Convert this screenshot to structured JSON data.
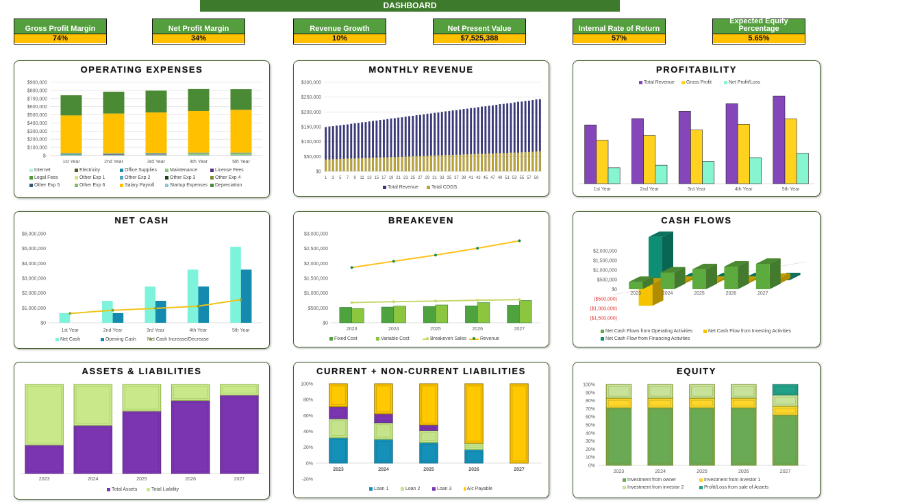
{
  "header": {
    "title": "DASHBOARD"
  },
  "kpis": [
    {
      "label": "Gross Profit Margin",
      "value": "74%"
    },
    {
      "label": "Net Profit Margin",
      "value": "34%"
    },
    {
      "label": "Revenue Growth",
      "value": "10%"
    },
    {
      "label": "Net Present Value",
      "value": "$7,525,388"
    },
    {
      "label": "Internal Rate of Return",
      "value": "57%"
    },
    {
      "label": "Expected Equity Percentage",
      "value": "5.65%"
    }
  ],
  "colors": {
    "title_bar": "#3E7A2C",
    "kpi_header": "#559E3E",
    "kpi_value": "#FFC000"
  },
  "chart_data": [
    {
      "id": "opex",
      "type": "bar",
      "stacked": true,
      "grid": true,
      "title": "OPERATING EXPENSES",
      "categories": [
        "1st Year",
        "2nd Year",
        "3rd Year",
        "4th Year",
        "5th Year"
      ],
      "ylim": [
        0,
        900000
      ],
      "yticks": [
        "$-",
        "$100,000",
        "$200,000",
        "$300,000",
        "$400,000",
        "$500,000",
        "$600,000",
        "$700,000",
        "$800,000",
        "$900,000"
      ],
      "legend": "bottom",
      "series": [
        {
          "name": "Internet",
          "color": "#B7F0E0",
          "values": [
            3000,
            3000,
            3000,
            3000,
            3000
          ]
        },
        {
          "name": "Electricity",
          "color": "#4E5A1E",
          "values": [
            3000,
            3000,
            3000,
            3000,
            3000
          ]
        },
        {
          "name": "Office Supplies",
          "color": "#1F8CA8",
          "values": [
            8000,
            3000,
            3000,
            3000,
            3000
          ]
        },
        {
          "name": "Maintenance",
          "color": "#8CC97A",
          "values": [
            3000,
            3000,
            5000,
            12000,
            12000
          ]
        },
        {
          "name": "License Fees",
          "color": "#5C2D83",
          "values": [
            2000,
            5000,
            6000,
            2000,
            2000
          ]
        },
        {
          "name": "Legal Fees",
          "color": "#4C9A3C",
          "values": [
            2000,
            2000,
            2000,
            2000,
            2000
          ]
        },
        {
          "name": "Other Exp 1",
          "color": "#D3E48A",
          "values": [
            2000,
            2000,
            2000,
            2000,
            2000
          ]
        },
        {
          "name": "Other Exp 2",
          "color": "#4FA6B8",
          "values": [
            2000,
            2000,
            2000,
            2000,
            2000
          ]
        },
        {
          "name": "Other Exp 3",
          "color": "#24401A",
          "values": [
            2000,
            2000,
            2000,
            2000,
            2000
          ]
        },
        {
          "name": "Other Exp 4",
          "color": "#7C8A36",
          "values": [
            2000,
            2000,
            2000,
            2000,
            2000
          ]
        },
        {
          "name": "Other Exp 5",
          "color": "#2B5E6E",
          "values": [
            2000,
            2000,
            2000,
            2000,
            2000
          ]
        },
        {
          "name": "Other Exp 6",
          "color": "#7DBE6E",
          "values": [
            2000,
            2000,
            2000,
            2000,
            2000
          ]
        },
        {
          "name": "Salary Payroll",
          "color": "#FFC000",
          "values": [
            460000,
            485000,
            495000,
            510000,
            525000
          ]
        },
        {
          "name": "Startup Expenses",
          "color": "#8BC7D0",
          "values": [
            0,
            0,
            0,
            0,
            0
          ]
        },
        {
          "name": "Depreciation",
          "color": "#4A8A34",
          "values": [
            247000,
            268000,
            268000,
            270000,
            253000
          ]
        }
      ]
    },
    {
      "id": "monthly",
      "type": "bar",
      "stacked": false,
      "overlap": true,
      "grid": true,
      "title": "MONTHLY REVENUE",
      "categories": [
        1,
        2,
        3,
        4,
        5,
        6,
        7,
        8,
        9,
        10,
        11,
        12,
        13,
        14,
        15,
        16,
        17,
        18,
        19,
        20,
        21,
        22,
        23,
        24,
        25,
        26,
        27,
        28,
        29,
        30,
        31,
        32,
        33,
        34,
        35,
        36,
        37,
        38,
        39,
        40,
        41,
        42,
        43,
        44,
        45,
        46,
        47,
        48,
        49,
        50,
        51,
        52,
        53,
        54,
        55,
        56,
        57,
        58,
        59,
        60
      ],
      "ylim": [
        0,
        300000
      ],
      "yticks": [
        "$0",
        "$50,000",
        "$100,000",
        "$150,000",
        "$200,000",
        "$250,000",
        "$300,000"
      ],
      "legend": "bottom",
      "series": [
        {
          "name": "Total Revenue",
          "color": "#3B3A78",
          "values": [
            149000,
            151000,
            152000,
            154000,
            155000,
            157000,
            158000,
            160000,
            162000,
            163000,
            165000,
            166000,
            168000,
            170000,
            171000,
            173000,
            174000,
            176000,
            178000,
            179000,
            181000,
            182000,
            184000,
            186000,
            187000,
            189000,
            190000,
            192000,
            194000,
            195000,
            197000,
            198000,
            200000,
            202000,
            203000,
            205000,
            206000,
            208000,
            210000,
            211000,
            213000,
            214000,
            216000,
            218000,
            219000,
            221000,
            222000,
            224000,
            226000,
            227000,
            229000,
            230000,
            232000,
            234000,
            235000,
            237000,
            238000,
            240000,
            242000,
            243000
          ]
        },
        {
          "name": "Total COGS",
          "color": "#B8A23A",
          "values": [
            40000,
            40000,
            41000,
            41000,
            42000,
            42000,
            43000,
            43000,
            43000,
            44000,
            44000,
            45000,
            45000,
            46000,
            46000,
            47000,
            47000,
            47000,
            48000,
            48000,
            49000,
            49000,
            50000,
            50000,
            51000,
            51000,
            51000,
            52000,
            52000,
            53000,
            53000,
            54000,
            54000,
            55000,
            55000,
            55000,
            56000,
            56000,
            57000,
            57000,
            58000,
            58000,
            59000,
            59000,
            59000,
            60000,
            60000,
            61000,
            61000,
            62000,
            62000,
            63000,
            63000,
            63000,
            64000,
            65000,
            65000,
            66000,
            67000,
            68000
          ]
        }
      ]
    },
    {
      "id": "profit",
      "type": "bar",
      "stacked": false,
      "grid": false,
      "title": "PROFITABILITY",
      "categories": [
        "1st Year",
        "2nd Year",
        "3rd Year",
        "4th Year",
        "5th Year"
      ],
      "ylim": [
        0,
        3000000
      ],
      "yticks": [],
      "legend": "top",
      "series": [
        {
          "name": "Total Revenue",
          "color": "#8446B8",
          "stroke": "#222",
          "values": [
            1850000,
            2050000,
            2280000,
            2520000,
            2760000
          ]
        },
        {
          "name": "Gross Profit",
          "color": "#FFD21F",
          "stroke": "#222",
          "values": [
            1370000,
            1520000,
            1690000,
            1870000,
            2040000
          ]
        },
        {
          "name": "Net Profit/Loss",
          "color": "#86F5D0",
          "stroke": "#222",
          "values": [
            500000,
            580000,
            700000,
            820000,
            960000
          ]
        }
      ]
    },
    {
      "id": "netcash",
      "type": "bar",
      "stacked": false,
      "grid": false,
      "title": "NET CASH",
      "categories": [
        "1st Year",
        "2nd Year",
        "3rd Year",
        "4th Year",
        "5th Year"
      ],
      "ylim": [
        0,
        6000000
      ],
      "yticks": [
        "$0",
        "$1,000,000",
        "$2,000,000",
        "$3,000,000",
        "$4,000,000",
        "$5,000,000",
        "$6,000,000"
      ],
      "legend": "bottom",
      "series": [
        {
          "name": "Net Cash",
          "color": "#7CF3DA",
          "values": [
            650000,
            1480000,
            2440000,
            3580000,
            5120000
          ]
        },
        {
          "name": "Opening Cash",
          "color": "#138AAE",
          "values": [
            0,
            650000,
            1480000,
            2440000,
            3580000
          ]
        },
        {
          "name": "Net Cash Increase/Decrease",
          "kind": "line",
          "color": "#F2C318",
          "marker": "#8AA23A",
          "values": [
            630000,
            840000,
            970000,
            1120000,
            1560000
          ]
        }
      ]
    },
    {
      "id": "breakeven",
      "type": "bar",
      "stacked": false,
      "grid": false,
      "title": "BREAKEVEN",
      "categories": [
        "2023",
        "2024",
        "2025",
        "2026",
        "2027"
      ],
      "ylim": [
        0,
        3000000
      ],
      "yticks": [
        "$0",
        "$500,000",
        "$1,000,000",
        "$1,500,000",
        "$2,000,000",
        "$2,500,000",
        "$3,000,000"
      ],
      "legend": "bottom",
      "series": [
        {
          "name": "Fixed Cost",
          "color": "#4FA33F",
          "stroke": "#2B7A3A",
          "values": [
            520000,
            530000,
            550000,
            570000,
            590000
          ]
        },
        {
          "name": "Variable Cost",
          "color": "#8CC63F",
          "stroke": "#2B7A3A",
          "values": [
            480000,
            560000,
            600000,
            680000,
            750000
          ]
        },
        {
          "name": "Breakeven Sales",
          "kind": "line",
          "color": "#C8D86A",
          "marker": "#C8D86A",
          "values": [
            680000,
            710000,
            730000,
            760000,
            780000
          ]
        },
        {
          "name": "Revenue",
          "kind": "line",
          "color": "#FFC21A",
          "marker": "#1E8A4A",
          "values": [
            1860000,
            2070000,
            2280000,
            2510000,
            2760000
          ]
        }
      ]
    },
    {
      "id": "cashflows",
      "type": "bar",
      "stacked": false,
      "grid": false,
      "three_d": true,
      "title": "CASH FLOWS",
      "categories": [
        "2023",
        "2024",
        "2025",
        "2026",
        "2027"
      ],
      "ylim": [
        -1500000,
        2000000
      ],
      "yticks": [
        "($1,500,000)",
        "($1,000,000)",
        "($500,000)",
        "$0",
        "$500,000",
        "$1,000,000",
        "$1,500,000",
        "$2,000,000"
      ],
      "negative_tick_color": "#E03030",
      "legend": "bottom",
      "series": [
        {
          "name": "Net Cash Flows from Operating Activities",
          "color": "#5DAA3E",
          "values": [
            380000,
            870000,
            1040000,
            1180000,
            1320000
          ]
        },
        {
          "name": "Net Cash Flow from Investing Activities",
          "color": "#F5C400",
          "values": [
            -1150000,
            100000,
            100000,
            100000,
            250000
          ]
        },
        {
          "name": "Net Cash Flow from Financing Activities",
          "color": "#0E8E74",
          "values": [
            2150000,
            0,
            0,
            0,
            0
          ]
        }
      ]
    },
    {
      "id": "assets",
      "type": "bar",
      "stacked": true,
      "percent": true,
      "grid": false,
      "title": "ASSETS & LIABILITIES",
      "categories": [
        "2023",
        "2024",
        "2025",
        "2026",
        "2027"
      ],
      "ylim": [
        0,
        100
      ],
      "yticks": [],
      "legend": "bottom",
      "series": [
        {
          "name": "Total Assets",
          "color": "#7B35B0",
          "stroke": "#5B2A86",
          "values": [
            32,
            54,
            70,
            82,
            88
          ]
        },
        {
          "name": "Total Liability",
          "color": "#C8E88A",
          "stroke": "#8DB04A",
          "values": [
            68,
            46,
            30,
            18,
            12
          ]
        }
      ]
    },
    {
      "id": "liab",
      "type": "bar",
      "stacked": true,
      "percent": true,
      "grid": false,
      "title": "CURRENT + NON-CURRENT LIABILITIES",
      "categories": [
        "2023",
        "2024",
        "2025",
        "2026",
        "2027"
      ],
      "ylim": [
        -20,
        100
      ],
      "yticks": [
        "-20%",
        "0%",
        "20%",
        "40%",
        "60%",
        "80%",
        "100%"
      ],
      "legend": "bottom",
      "series": [
        {
          "name": "Loan 1",
          "color": "#1590B8",
          "stroke": "#0E6A88",
          "values": [
            32,
            30,
            26,
            17,
            0
          ]
        },
        {
          "name": "Loan 2",
          "color": "#C4E38A",
          "stroke": "#8DB04A",
          "values": [
            24,
            21,
            15,
            8,
            0
          ]
        },
        {
          "name": "Loan 3",
          "color": "#7B35B0",
          "stroke": "#5B2A86",
          "values": [
            15,
            11,
            7,
            0,
            0
          ]
        },
        {
          "name": "A/c Payable",
          "color": "#FFC800",
          "stroke": "#8A6A00",
          "values": [
            29,
            38,
            52,
            75,
            100
          ]
        }
      ]
    },
    {
      "id": "equity",
      "type": "bar",
      "stacked": true,
      "percent": true,
      "grid": false,
      "title": "EQUITY",
      "categories": [
        "2023",
        "2024",
        "2025",
        "2026",
        "2027"
      ],
      "ylim": [
        0,
        100
      ],
      "yticks": [
        "0%",
        "10%",
        "20%",
        "30%",
        "40%",
        "50%",
        "60%",
        "70%",
        "80%",
        "90%",
        "100%"
      ],
      "legend": "bottom",
      "series": [
        {
          "name": "Investment from owner",
          "color": "#6BAA55",
          "stroke": "#7A8A20",
          "values": [
            71,
            71,
            71,
            71,
            62
          ]
        },
        {
          "name": "Investment from investor 1",
          "color": "#FFD52A",
          "stroke": "#7A8A20",
          "values": [
            12,
            12,
            12,
            12,
            11
          ]
        },
        {
          "name": "Investment from investor 2",
          "color": "#C7E29A",
          "stroke": "#7A8A20",
          "values": [
            17,
            17,
            17,
            17,
            14
          ]
        },
        {
          "name": "Profit/Loss from sale of Assets",
          "color": "#22A088",
          "stroke": "#1A6A5A",
          "values": [
            0,
            0,
            0,
            0,
            13
          ]
        }
      ]
    }
  ]
}
